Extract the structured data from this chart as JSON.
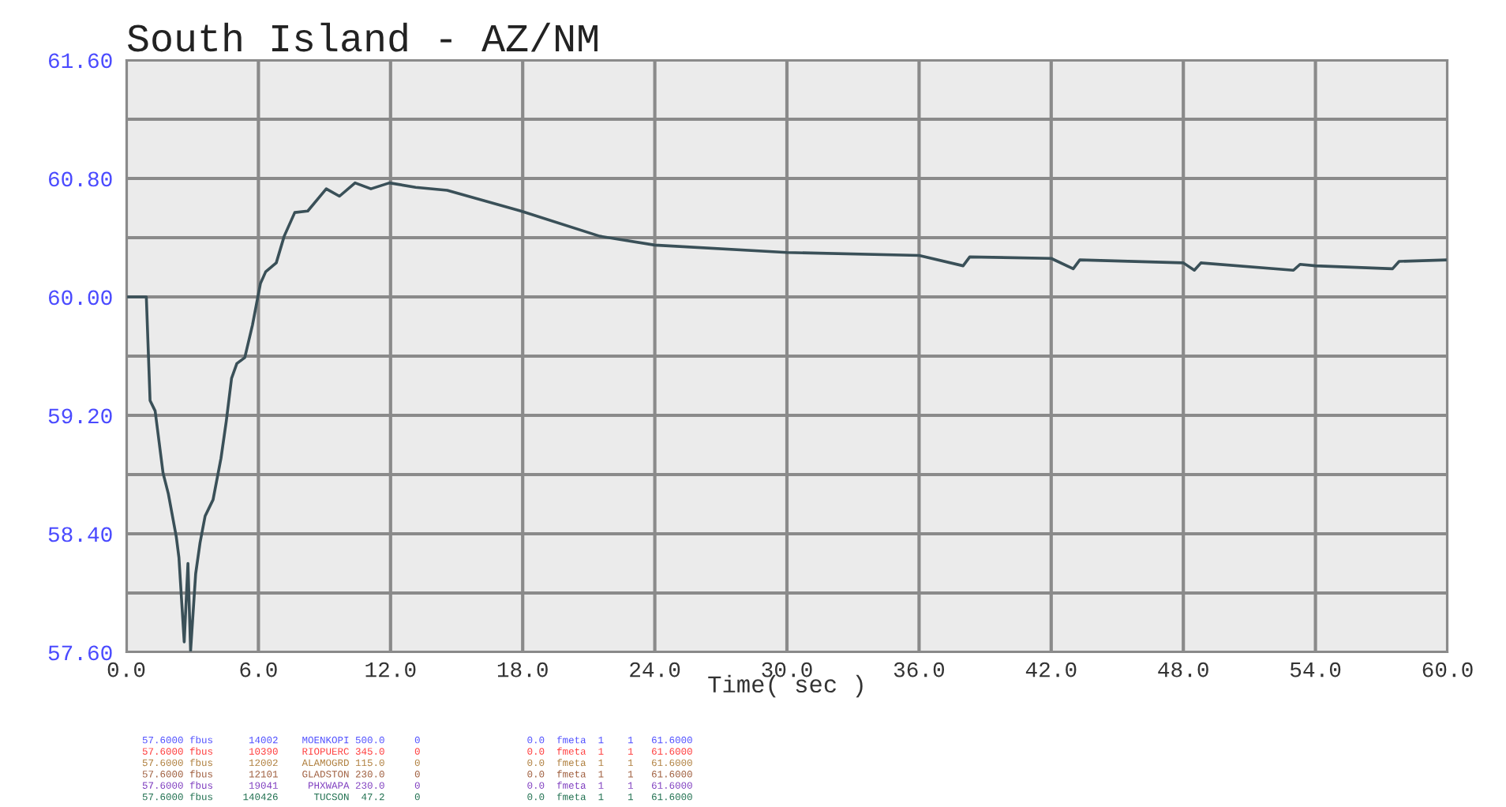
{
  "chart_data": {
    "type": "line",
    "title": "South Island - AZ/NM",
    "xlabel": "Time( sec )",
    "x": [
      0,
      0.91,
      1.08,
      1.31,
      1.67,
      1.91,
      2.27,
      2.39,
      2.63,
      2.8,
      2.92,
      3.15,
      3.35,
      3.58,
      3.94,
      4.3,
      4.54,
      4.78,
      5.02,
      5.38,
      5.73,
      6.09,
      6.33,
      6.81,
      7.17,
      7.65,
      8.24,
      9.08,
      9.68,
      10.39,
      11.11,
      11.95,
      13.14,
      14.57,
      17.92,
      21.5,
      24,
      30,
      36,
      38,
      38.3,
      42,
      43,
      43.3,
      48,
      48.5,
      48.8,
      53,
      53.3,
      54,
      57.5,
      57.8,
      60
    ],
    "series": [
      {
        "color": "#3a5058",
        "values": [
          60.0,
          60.0,
          59.3,
          59.23,
          58.81,
          58.67,
          58.38,
          58.24,
          57.67,
          58.2,
          57.61,
          58.13,
          58.34,
          58.52,
          58.63,
          58.91,
          59.16,
          59.45,
          59.55,
          59.59,
          59.81,
          60.09,
          60.17,
          60.23,
          60.41,
          60.57,
          60.58,
          60.73,
          60.68,
          60.77,
          60.73,
          60.77,
          60.74,
          60.72,
          60.58,
          60.41,
          60.35,
          60.3,
          60.28,
          60.21,
          60.27,
          60.26,
          60.19,
          60.25,
          60.23,
          60.18,
          60.23,
          60.18,
          60.22,
          60.21,
          60.19,
          60.24,
          60.25
        ]
      }
    ],
    "xlim": [
      0,
      60
    ],
    "xticks": [
      {
        "value": 0,
        "label": "0.0"
      },
      {
        "value": 6,
        "label": "6.0"
      },
      {
        "value": 12,
        "label": "12.0"
      },
      {
        "value": 18,
        "label": "18.0"
      },
      {
        "value": 24,
        "label": "24.0"
      },
      {
        "value": 30,
        "label": "30.0"
      },
      {
        "value": 36,
        "label": "36.0"
      },
      {
        "value": 42,
        "label": "42.0"
      },
      {
        "value": 48,
        "label": "48.0"
      },
      {
        "value": 54,
        "label": "54.0"
      },
      {
        "value": 60,
        "label": "60.0"
      }
    ],
    "ylim": [
      57.6,
      61.6
    ],
    "yticks": [
      {
        "value": 57.6,
        "label": "57.60"
      },
      {
        "value": 58.0,
        "label": null
      },
      {
        "value": 58.4,
        "label": "58.40"
      },
      {
        "value": 58.8,
        "label": null
      },
      {
        "value": 59.2,
        "label": "59.20"
      },
      {
        "value": 59.6,
        "label": null
      },
      {
        "value": 60.0,
        "label": "60.00"
      },
      {
        "value": 60.4,
        "label": null
      },
      {
        "value": 60.8,
        "label": "60.80"
      },
      {
        "value": 61.2,
        "label": null
      },
      {
        "value": 61.6,
        "label": "61.60"
      }
    ],
    "grid": true,
    "marker": "none",
    "line_style": "solid",
    "annotations": [
      "57.6000 fbus      14002    MOENKOPI 500.0     0                  0.0  fmeta  1    1   61.6000",
      "57.6000 fbus      10390    RIOPUERC 345.0     0                  0.0  fmeta  1    1   61.6000",
      "57.6000 fbus      12002    ALAMOGRD 115.0     0                  0.0  fmeta  1    1   61.6000",
      "57.6000 fbus      12101    GLADSTON 230.0     0                  0.0  fmeta  1    1   61.6000",
      "57.6000 fbus      19041     PHXWAPA 230.0     0                  0.0  fmeta  1    1   61.6000",
      "57.6000 fbus     140426      TUCSON  47.2     0                  0.0  fmeta  1    1   61.6000"
    ]
  }
}
